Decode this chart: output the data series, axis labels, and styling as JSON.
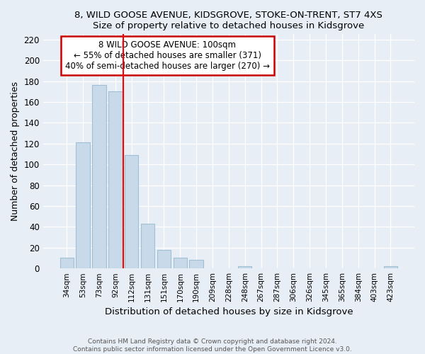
{
  "title1": "8, WILD GOOSE AVENUE, KIDSGROVE, STOKE-ON-TRENT, ST7 4XS",
  "title2": "Size of property relative to detached houses in Kidsgrove",
  "xlabel": "Distribution of detached houses by size in Kidsgrove",
  "ylabel": "Number of detached properties",
  "bar_labels": [
    "34sqm",
    "53sqm",
    "73sqm",
    "92sqm",
    "112sqm",
    "131sqm",
    "151sqm",
    "170sqm",
    "190sqm",
    "209sqm",
    "228sqm",
    "248sqm",
    "267sqm",
    "287sqm",
    "306sqm",
    "326sqm",
    "345sqm",
    "365sqm",
    "384sqm",
    "403sqm",
    "423sqm"
  ],
  "bar_values": [
    10,
    121,
    176,
    170,
    109,
    43,
    18,
    10,
    8,
    0,
    0,
    2,
    0,
    0,
    0,
    0,
    0,
    0,
    0,
    0,
    2
  ],
  "bar_color": "#c8daea",
  "bar_edge_color": "#a0bfd4",
  "vline_x": 3.5,
  "vline_color": "red",
  "annotation_title": "8 WILD GOOSE AVENUE: 100sqm",
  "annotation_line1": "← 55% of detached houses are smaller (371)",
  "annotation_line2": "40% of semi-detached houses are larger (270) →",
  "box_color": "white",
  "box_edge_color": "#cc0000",
  "ylim": [
    0,
    225
  ],
  "yticks": [
    0,
    20,
    40,
    60,
    80,
    100,
    120,
    140,
    160,
    180,
    200,
    220
  ],
  "background_color": "#e8eef5",
  "footer1": "Contains HM Land Registry data © Crown copyright and database right 2024.",
  "footer2": "Contains public sector information licensed under the Open Government Licence v3.0."
}
